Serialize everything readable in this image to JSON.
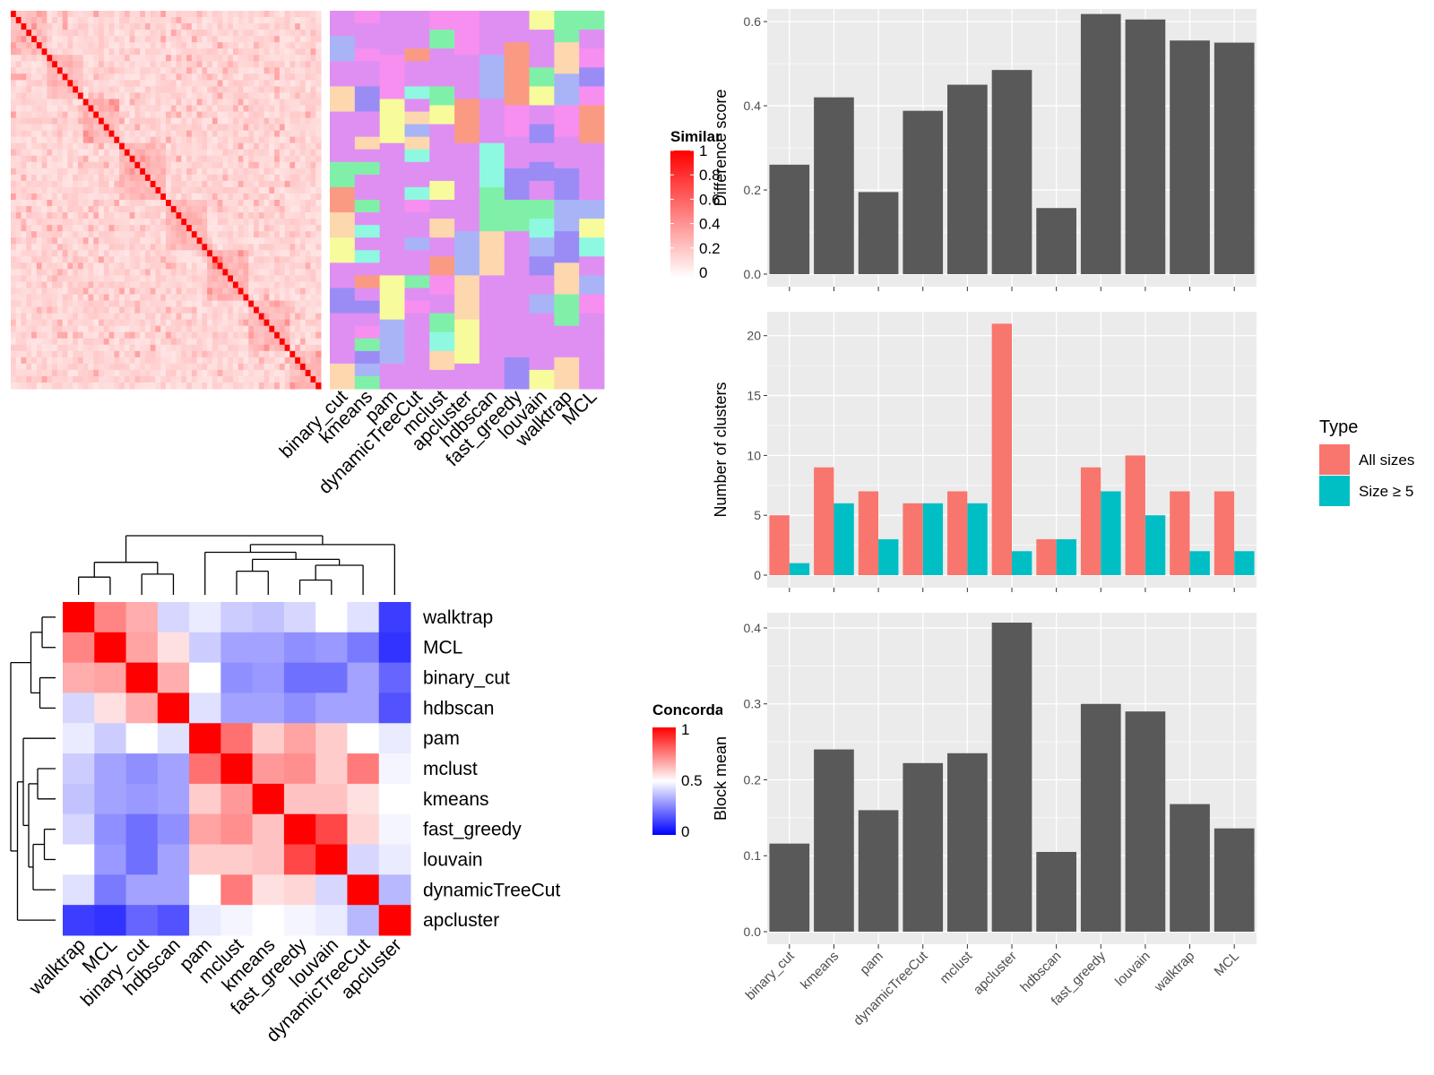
{
  "sim_heatmap": {
    "legend_title": "Similarity",
    "legend_ticks": [
      "1",
      "0.8",
      "0.6",
      "0.4",
      "0.2",
      "0"
    ],
    "low_color": "#ffffff",
    "high_color": "#ff0000",
    "n_items": 60
  },
  "membership": {
    "methods": [
      "binary_cut",
      "kmeans",
      "pam",
      "dynamicTreeCut",
      "mclust",
      "apcluster",
      "hdbscan",
      "fast_greedy",
      "louvain",
      "walktrap",
      "MCL"
    ],
    "palette": [
      "#df8ff2",
      "#9b8cf5",
      "#80f0a8",
      "#fb9a83",
      "#f7fb9c",
      "#fdd7ae",
      "#a9b4f7",
      "#8ef9e0",
      "#f78ff0",
      "#cfc0f7",
      "#e0f88f"
    ]
  },
  "concordance": {
    "legend_title": "Concordance",
    "legend_ticks": [
      "1",
      "0.5",
      "0"
    ],
    "colors": {
      "low": "#0000ff",
      "mid": "#ffffff",
      "high": "#ff0000"
    },
    "order": [
      "walktrap",
      "MCL",
      "binary_cut",
      "hdbscan",
      "pam",
      "mclust",
      "kmeans",
      "fast_greedy",
      "louvain",
      "dynamicTreeCut",
      "apcluster"
    ],
    "matrix": [
      [
        1.0,
        0.74,
        0.66,
        0.42,
        0.46,
        0.4,
        0.38,
        0.42,
        0.5,
        0.44,
        0.12
      ],
      [
        0.74,
        1.0,
        0.68,
        0.56,
        0.4,
        0.32,
        0.32,
        0.28,
        0.3,
        0.24,
        0.1
      ],
      [
        0.66,
        0.68,
        1.0,
        0.66,
        0.5,
        0.28,
        0.3,
        0.22,
        0.22,
        0.32,
        0.2
      ],
      [
        0.42,
        0.56,
        0.66,
        1.0,
        0.44,
        0.32,
        0.32,
        0.28,
        0.32,
        0.32,
        0.16
      ],
      [
        0.46,
        0.4,
        0.5,
        0.44,
        1.0,
        0.78,
        0.6,
        0.68,
        0.6,
        0.5,
        0.46
      ],
      [
        0.4,
        0.32,
        0.28,
        0.32,
        0.78,
        1.0,
        0.7,
        0.72,
        0.6,
        0.76,
        0.48
      ],
      [
        0.38,
        0.32,
        0.3,
        0.32,
        0.6,
        0.7,
        1.0,
        0.62,
        0.62,
        0.56,
        0.5
      ],
      [
        0.42,
        0.28,
        0.22,
        0.28,
        0.68,
        0.72,
        0.62,
        1.0,
        0.86,
        0.58,
        0.48
      ],
      [
        0.5,
        0.3,
        0.22,
        0.32,
        0.6,
        0.6,
        0.62,
        0.86,
        1.0,
        0.42,
        0.46
      ],
      [
        0.44,
        0.24,
        0.32,
        0.32,
        0.5,
        0.76,
        0.56,
        0.58,
        0.42,
        1.0,
        0.36
      ],
      [
        0.12,
        0.1,
        0.2,
        0.16,
        0.46,
        0.48,
        0.5,
        0.48,
        0.46,
        0.36,
        1.0
      ]
    ]
  },
  "chart_data": [
    {
      "type": "bar",
      "categories": [
        "binary_cut",
        "kmeans",
        "pam",
        "dynamicTreeCut",
        "mclust",
        "apcluster",
        "hdbscan",
        "fast_greedy",
        "louvain",
        "walktrap",
        "MCL"
      ],
      "values": [
        0.26,
        0.42,
        0.195,
        0.388,
        0.45,
        0.485,
        0.157,
        0.618,
        0.605,
        0.555,
        0.55
      ],
      "ylabel": "Difference score",
      "ylim": [
        0,
        0.63
      ],
      "yticks": [
        "0.0",
        "0.2",
        "0.4",
        "0.6"
      ],
      "bar_color": "#595959"
    },
    {
      "type": "bar",
      "categories": [
        "binary_cut",
        "kmeans",
        "pam",
        "dynamicTreeCut",
        "mclust",
        "apcluster",
        "hdbscan",
        "fast_greedy",
        "louvain",
        "walktrap",
        "MCL"
      ],
      "series": [
        {
          "name": "All sizes",
          "values": [
            5,
            9,
            7,
            6,
            7,
            21,
            3,
            9,
            10,
            7,
            7
          ],
          "color": "#f8766d"
        },
        {
          "name": "Size ≥ 5",
          "values": [
            1,
            6,
            3,
            6,
            6,
            2,
            3,
            7,
            5,
            2,
            2
          ],
          "color": "#00bfc4"
        }
      ],
      "ylabel": "Number of clusters",
      "ylim": [
        0,
        22
      ],
      "yticks": [
        "0",
        "5",
        "10",
        "15",
        "20"
      ],
      "legend": {
        "title": "Type",
        "position": "right"
      }
    },
    {
      "type": "bar",
      "categories": [
        "binary_cut",
        "kmeans",
        "pam",
        "dynamicTreeCut",
        "mclust",
        "apcluster",
        "hdbscan",
        "fast_greedy",
        "louvain",
        "walktrap",
        "MCL"
      ],
      "values": [
        0.116,
        0.24,
        0.16,
        0.222,
        0.235,
        0.407,
        0.105,
        0.3,
        0.29,
        0.168,
        0.136
      ],
      "ylabel": "Block mean",
      "ylim": [
        0,
        0.42
      ],
      "yticks": [
        "0.0",
        "0.1",
        "0.2",
        "0.3",
        "0.4"
      ],
      "bar_color": "#595959"
    }
  ]
}
